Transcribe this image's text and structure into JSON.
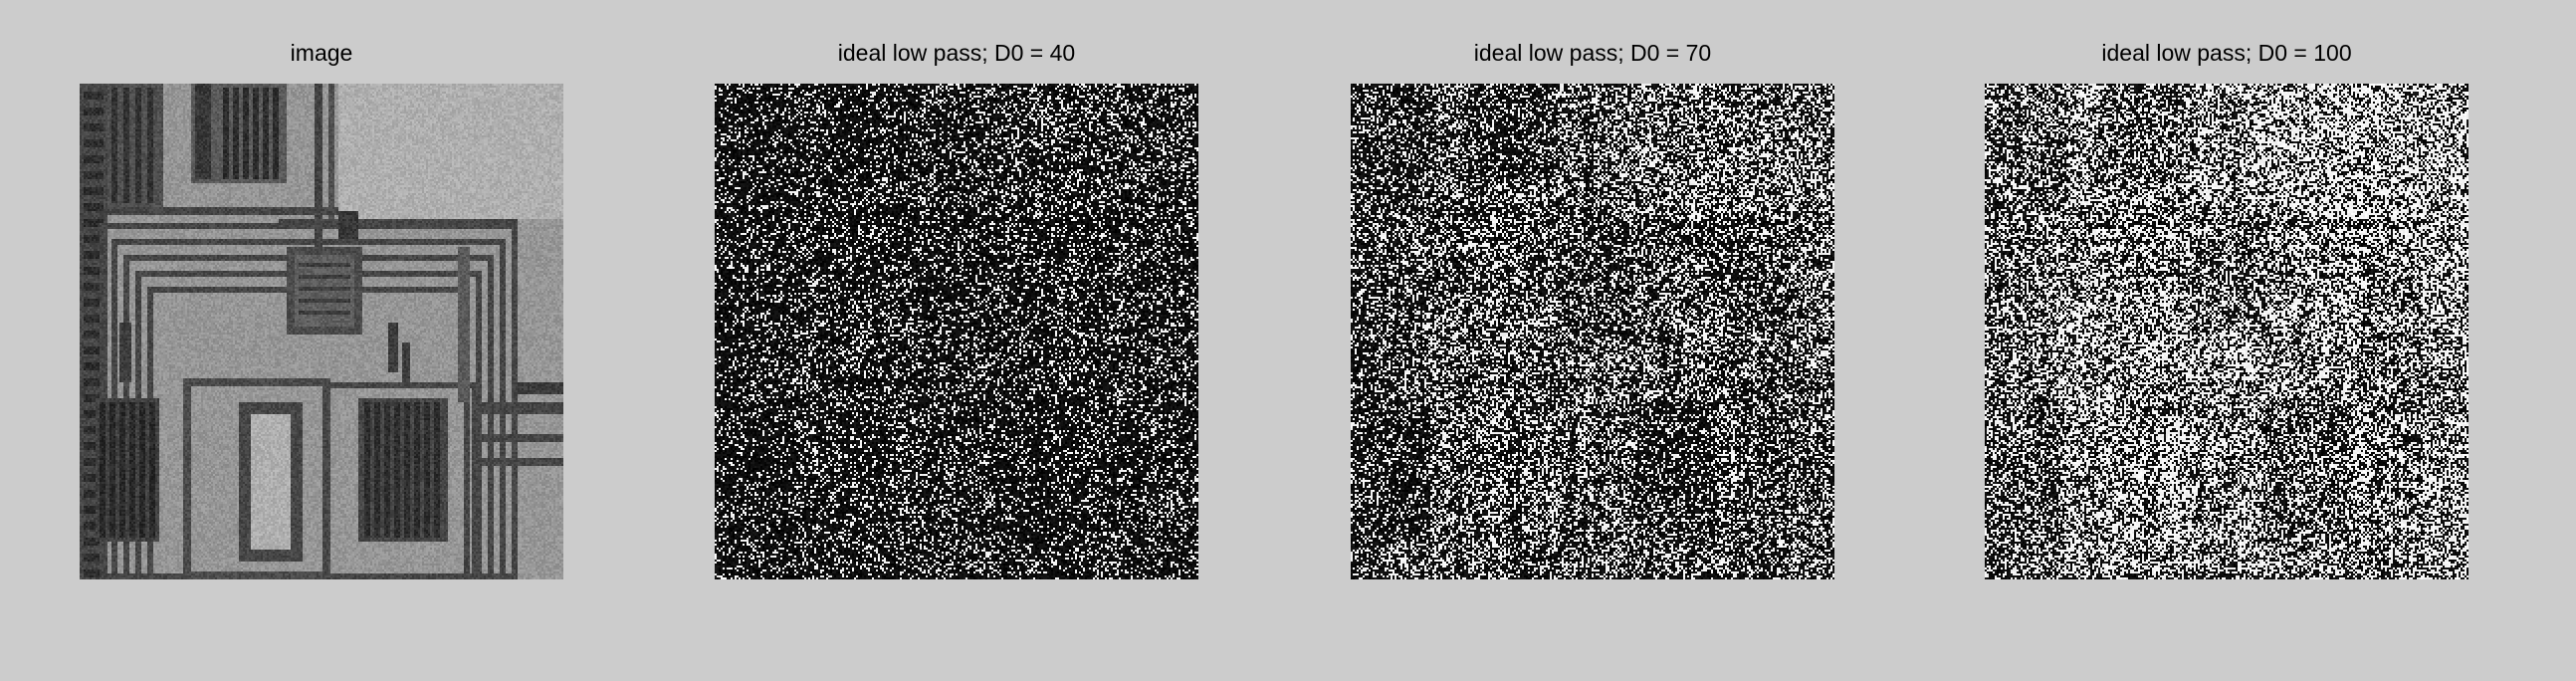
{
  "figure": {
    "background": "#cccccc",
    "panels": [
      {
        "title": "image",
        "kind": "circuit-board-grayscale"
      },
      {
        "title": "ideal low pass; D0 = 40",
        "kind": "noise-dark"
      },
      {
        "title": "ideal low pass; D0 = 70",
        "kind": "noise-medium"
      },
      {
        "title": "ideal low pass; D0 = 100",
        "kind": "noise-bright"
      }
    ]
  }
}
